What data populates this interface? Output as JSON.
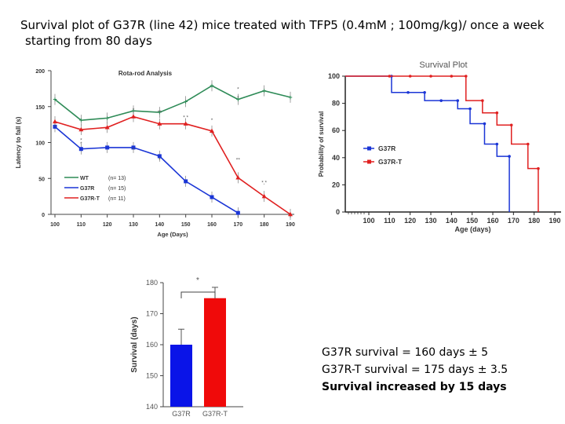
{
  "title": {
    "line1": "Survival plot of G37R (line 42) mice treated with TFP5 (0.4mM ; 100mg/kg)/ once a week",
    "line2": "starting from 80 days"
  },
  "notes": [
    "G37R survival = 160 days ± 5",
    "G37R-T survival = 175 days ± 3.5",
    "Survival increased by 15 days"
  ],
  "colors": {
    "wt": "#2e8b57",
    "g37r": "#1a35d6",
    "g37rt": "#e02020",
    "bar_blue": "#0a14e8",
    "bar_red": "#f00a0a"
  },
  "chart_data": [
    {
      "type": "line",
      "title": "Rota-rod Analysis",
      "xlabel": "Age (Days)",
      "ylabel": "Latency to fall (s)",
      "xlim": [
        100,
        190
      ],
      "ylim": [
        0,
        200
      ],
      "xticks": [
        "100",
        "110",
        "120",
        "130",
        "140",
        "150",
        "160",
        "170",
        "180",
        "190"
      ],
      "yticks": [
        "0",
        "50",
        "100",
        "150",
        "200"
      ],
      "series": [
        {
          "name": "WT",
          "n_label": "(n= 13)",
          "color": "#2e8b57",
          "x": [
            100,
            110,
            120,
            130,
            140,
            150,
            160,
            170,
            180,
            190
          ],
          "y": [
            160,
            131,
            134,
            144,
            142,
            157,
            179,
            160,
            172,
            163
          ]
        },
        {
          "name": "G37R",
          "n_label": "(n= 15)",
          "color": "#1a35d6",
          "x": [
            100,
            110,
            120,
            130,
            140,
            150,
            160,
            170
          ],
          "y": [
            122,
            91,
            93,
            93,
            81,
            46,
            24,
            2
          ]
        },
        {
          "name": "G37R-T",
          "n_label": "(n= 11)",
          "color": "#e02020",
          "x": [
            100,
            110,
            120,
            130,
            140,
            150,
            160,
            170,
            180,
            190
          ],
          "y": [
            129,
            118,
            121,
            136,
            126,
            126,
            116,
            51,
            25,
            0
          ]
        }
      ],
      "annotations": [
        "*",
        "*",
        "*",
        "*",
        "*",
        "**",
        "*,*",
        "*",
        "*",
        "**",
        "*,*",
        "*"
      ]
    },
    {
      "type": "line",
      "title": "Survival Plot",
      "xlabel": "Age (days)",
      "ylabel": "Probability of survival",
      "xlim": [
        100,
        190
      ],
      "ylim": [
        0,
        100
      ],
      "xticks": [
        "100",
        "110",
        "120",
        "130",
        "140",
        "150",
        "160",
        "170",
        "180",
        "190"
      ],
      "yticks": [
        "0",
        "20",
        "40",
        "60",
        "80",
        "100"
      ],
      "series": [
        {
          "name": "G37R",
          "color": "#1a35d6",
          "x": [
            100,
            111,
            111,
            119,
            119,
            127,
            127,
            135,
            135,
            143,
            143,
            149,
            149,
            156,
            156,
            162,
            162,
            168,
            168
          ],
          "y": [
            100,
            100,
            88,
            88,
            88,
            88,
            82,
            82,
            82,
            82,
            76,
            76,
            65,
            65,
            50,
            50,
            41,
            41,
            0
          ]
        },
        {
          "name": "G37R-T",
          "color": "#e02020",
          "x": [
            100,
            147,
            147,
            155,
            155,
            162,
            162,
            169,
            169,
            177,
            177,
            182,
            182
          ],
          "y": [
            100,
            100,
            82,
            82,
            73,
            73,
            64,
            64,
            50,
            50,
            32,
            32,
            0
          ]
        }
      ]
    },
    {
      "type": "bar",
      "categories": [
        "G37R",
        "G37R-T"
      ],
      "values": [
        160,
        175
      ],
      "errors": [
        5,
        3.5
      ],
      "ylabel": "Survival (days)",
      "ylim": [
        140,
        180
      ],
      "yticks": [
        "140",
        "150",
        "160",
        "170",
        "180"
      ],
      "significance": "*"
    }
  ]
}
